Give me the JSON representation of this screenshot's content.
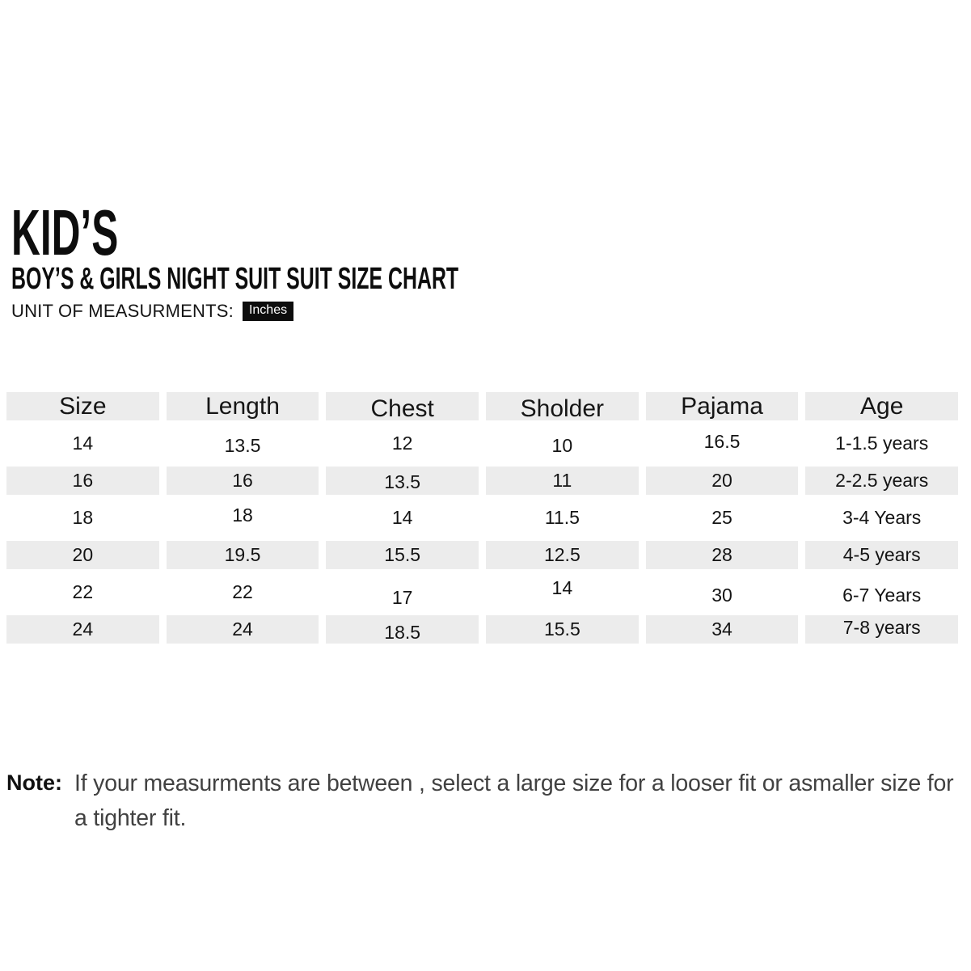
{
  "header": {
    "title": "KID’S",
    "subtitle": "BOY’S & GIRLS NIGHT SUIT SUIT SIZE CHART",
    "unit_label": "UNIT OF MEASURMENTS:",
    "unit_value": "Inches"
  },
  "table": {
    "columns": [
      {
        "header": "Size",
        "values": [
          "14",
          "16",
          "18",
          "20",
          "22",
          "24"
        ]
      },
      {
        "header": "Length",
        "values": [
          "13.5",
          "16",
          "18",
          "19.5",
          "22",
          "24"
        ]
      },
      {
        "header": "Chest",
        "values": [
          "12",
          "13.5",
          "14",
          "15.5",
          "17",
          "18.5"
        ]
      },
      {
        "header": "Sholder",
        "values": [
          "10",
          "11",
          "11.5",
          "12.5",
          "14",
          "15.5"
        ]
      },
      {
        "header": "Pajama",
        "values": [
          "16.5",
          "20",
          "25",
          "28",
          "30",
          "34"
        ]
      },
      {
        "header": "Age",
        "values": [
          "1-1.5 years",
          "2-2.5 years",
          "3-4 Years",
          "4-5 years",
          "6-7 Years",
          "7-8 years"
        ]
      }
    ]
  },
  "note": {
    "label": "Note:",
    "text": "If your measurments are between , select a large size for a looser fit or asmaller size for a tighter fit."
  },
  "colors": {
    "text": "#111111",
    "row_alt_bg": "#ececec",
    "badge_bg": "#0d0d0d",
    "badge_text": "#ffffff",
    "note_text": "#414141"
  }
}
